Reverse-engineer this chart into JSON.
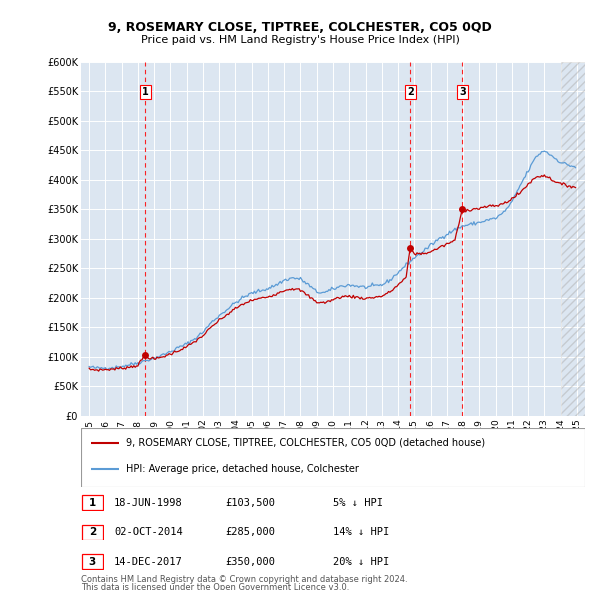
{
  "title": "9, ROSEMARY CLOSE, TIPTREE, COLCHESTER, CO5 0QD",
  "subtitle": "Price paid vs. HM Land Registry's House Price Index (HPI)",
  "ylim": [
    0,
    600000
  ],
  "yticks": [
    0,
    50000,
    100000,
    150000,
    200000,
    250000,
    300000,
    350000,
    400000,
    450000,
    500000,
    550000,
    600000
  ],
  "ytick_labels": [
    "£0",
    "£50K",
    "£100K",
    "£150K",
    "£200K",
    "£250K",
    "£300K",
    "£350K",
    "£400K",
    "£450K",
    "£500K",
    "£550K",
    "£600K"
  ],
  "bg_color": "#dce6f1",
  "grid_color": "#ffffff",
  "hpi_color": "#5b9bd5",
  "price_color": "#c00000",
  "vline_color": "#ff0000",
  "purchase_dates_decimal": [
    1998.46,
    2014.75,
    2017.96
  ],
  "purchase_prices": [
    103500,
    285000,
    350000
  ],
  "purchase_labels": [
    "1",
    "2",
    "3"
  ],
  "legend_label_price": "9, ROSEMARY CLOSE, TIPTREE, COLCHESTER, CO5 0QD (detached house)",
  "legend_label_hpi": "HPI: Average price, detached house, Colchester",
  "table_entries": [
    {
      "num": "1",
      "date": "18-JUN-1998",
      "price": "£103,500",
      "pct": "5% ↓ HPI"
    },
    {
      "num": "2",
      "date": "02-OCT-2014",
      "price": "£285,000",
      "pct": "14% ↓ HPI"
    },
    {
      "num": "3",
      "date": "14-DEC-2017",
      "price": "£350,000",
      "pct": "20% ↓ HPI"
    }
  ],
  "footnote1": "Contains HM Land Registry data © Crown copyright and database right 2024.",
  "footnote2": "This data is licensed under the Open Government Licence v3.0.",
  "hatch_start": 2024.0,
  "xlim": [
    1994.5,
    2025.5
  ],
  "xticks": [
    1995,
    1996,
    1997,
    1998,
    1999,
    2000,
    2001,
    2002,
    2003,
    2004,
    2005,
    2006,
    2007,
    2008,
    2009,
    2010,
    2011,
    2012,
    2013,
    2014,
    2015,
    2016,
    2017,
    2018,
    2019,
    2020,
    2021,
    2022,
    2023,
    2024,
    2025
  ]
}
